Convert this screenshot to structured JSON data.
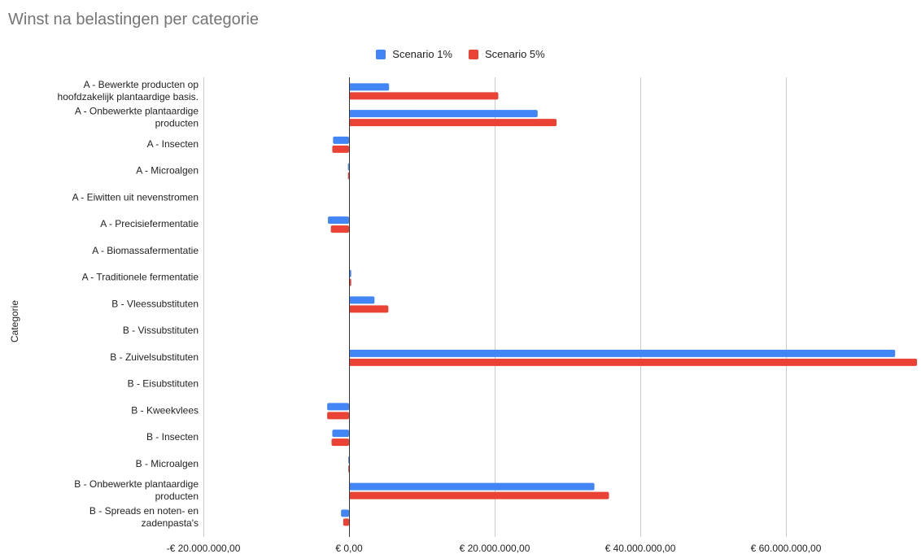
{
  "chart_data": {
    "type": "bar",
    "orientation": "horizontal",
    "title": "Winst na belastingen per categorie",
    "xlabel": "",
    "ylabel": "Categorie",
    "xlim": [
      -20000000,
      78000000
    ],
    "xticks": [
      -20000000,
      0,
      20000000,
      40000000,
      60000000
    ],
    "xtick_labels": [
      "-€ 20.000.000,00",
      "€ 0,00",
      "€ 20.000.000,00",
      "€ 40.000.000,00",
      "€ 60.000.000,00"
    ],
    "grid": true,
    "legend_position": "top",
    "categories": [
      "A - Bewerkte producten op hoofdzakelijk plantaardige basis.",
      "A - Onbewerkte plantaardige producten",
      "A - Insecten",
      "A - Microalgen",
      "A - Eiwitten uit nevenstromen",
      "A - Precisiefermentatie",
      "A - Biomassafermentatie",
      "A - Traditionele fermentatie",
      "B - Vleessubstituten",
      "B - Vissubstituten",
      "B - Zuivelsubstituten",
      "B - Eisubstituten",
      "B - Kweekvlees",
      "B - Insecten",
      "B - Microalgen",
      "B - Onbewerkte plantaardige producten",
      "B - Spreads en noten- en zadenpasta's"
    ],
    "category_lines": [
      [
        "A - Bewerkte producten op",
        "hoofdzakelijk plantaardige basis."
      ],
      [
        "A - Onbewerkte plantaardige",
        "producten"
      ],
      [
        "A - Insecten"
      ],
      [
        "A - Microalgen"
      ],
      [
        "A - Eiwitten uit nevenstromen"
      ],
      [
        "A - Precisiefermentatie"
      ],
      [
        "A - Biomassafermentatie"
      ],
      [
        "A - Traditionele fermentatie"
      ],
      [
        "B - Vleessubstituten"
      ],
      [
        "B - Vissubstituten"
      ],
      [
        "B - Zuivelsubstituten"
      ],
      [
        "B - Eisubstituten"
      ],
      [
        "B - Kweekvlees"
      ],
      [
        "B - Insecten"
      ],
      [
        "B - Microalgen"
      ],
      [
        "B - Onbewerkte plantaardige",
        "producten"
      ],
      [
        "B - Spreads en noten- en",
        "zadenpasta's"
      ]
    ],
    "series": [
      {
        "name": "Scenario 1%",
        "color": "#4285F4",
        "values": [
          5500000,
          25900000,
          -2200000,
          -150000,
          0,
          -2900000,
          0,
          300000,
          3500000,
          0,
          75000000,
          0,
          -3000000,
          -2300000,
          -100000,
          33700000,
          -1100000
        ]
      },
      {
        "name": "Scenario 5%",
        "color": "#EA4335",
        "values": [
          20500000,
          28500000,
          -2300000,
          -150000,
          0,
          -2500000,
          0,
          300000,
          5400000,
          0,
          78000000,
          0,
          -3000000,
          -2400000,
          -100000,
          35700000,
          -800000
        ]
      }
    ]
  }
}
